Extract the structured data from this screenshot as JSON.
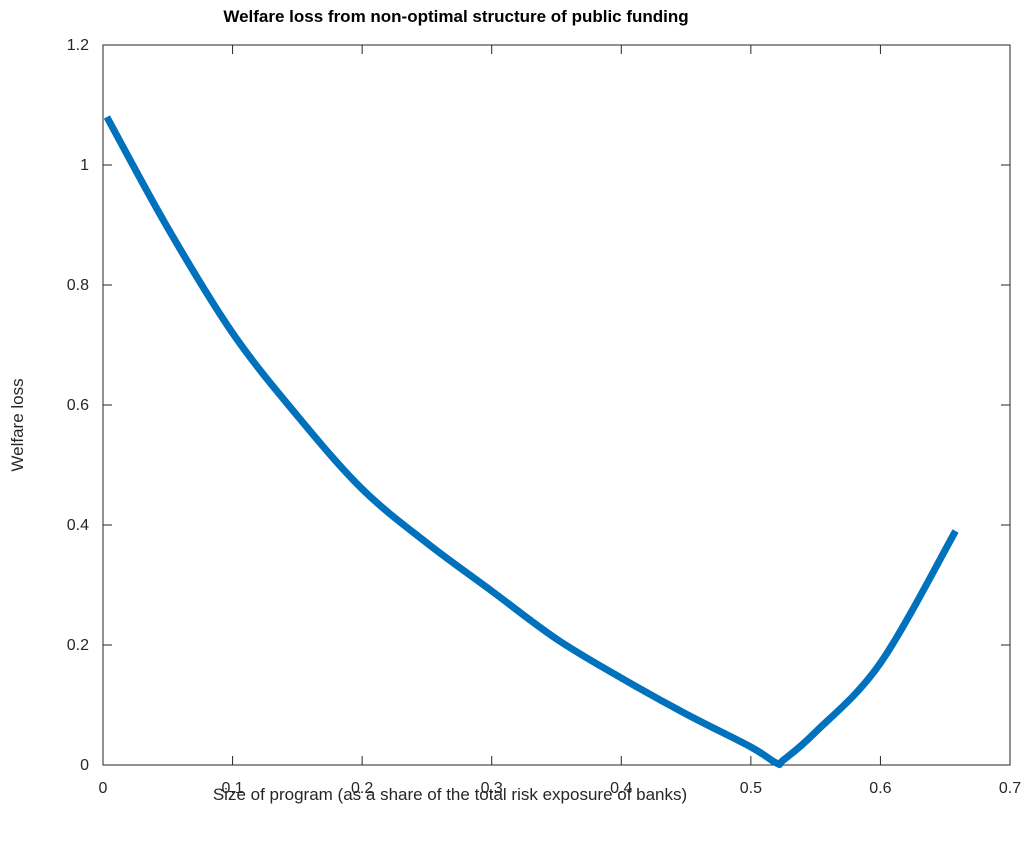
{
  "chart_data": {
    "type": "line",
    "title": "Welfare loss from non-optimal structure of public funding",
    "xlabel": "Size of program (as a share of the total risk exposure of banks)",
    "ylabel": "Welfare loss",
    "xlim": [
      0,
      0.7
    ],
    "ylim": [
      0,
      1.2
    ],
    "xticks": [
      0,
      0.1,
      0.2,
      0.3,
      0.4,
      0.5,
      0.6,
      0.7
    ],
    "xtick_labels": [
      "0",
      "0.1",
      "0.2",
      "0.3",
      "0.4",
      "0.5",
      "0.6",
      "0.7"
    ],
    "yticks": [
      0,
      0.2,
      0.4,
      0.6,
      0.8,
      1.0,
      1.2
    ],
    "ytick_labels": [
      "0",
      "0.2",
      "0.4",
      "0.6",
      "0.8",
      "1",
      "1.2"
    ],
    "grid": false,
    "box": true,
    "series": [
      {
        "color": "#0072BD",
        "x": [
          0.003,
          0.05,
          0.1,
          0.15,
          0.2,
          0.25,
          0.3,
          0.35,
          0.4,
          0.45,
          0.5,
          0.52,
          0.525,
          0.55,
          0.6,
          0.658
        ],
        "y": [
          1.08,
          0.895,
          0.72,
          0.582,
          0.46,
          0.37,
          0.29,
          0.21,
          0.145,
          0.085,
          0.03,
          0.003,
          0.008,
          0.055,
          0.17,
          0.39
        ]
      }
    ]
  }
}
